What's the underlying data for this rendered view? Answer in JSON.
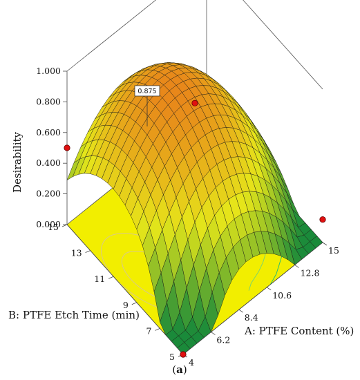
{
  "chart_data": {
    "type": "surface3d",
    "zlabel": "Desirability",
    "xlabel": "A: PTFE Content (%)",
    "ylabel": "B: PTFE Etch Time (min)",
    "x_ticks": [
      "4",
      "6.2",
      "8.4",
      "10.6",
      "12.8",
      "15"
    ],
    "y_ticks": [
      "5",
      "7",
      "9",
      "11",
      "13",
      "15"
    ],
    "z_ticks": [
      "0.000",
      "0.200",
      "0.400",
      "0.600",
      "0.800",
      "1.000"
    ],
    "xlim": [
      4,
      15
    ],
    "ylim": [
      5,
      15
    ],
    "zlim": [
      0,
      1
    ],
    "annotation": "0.875",
    "caption_prefix": "(",
    "caption_letter": "a",
    "caption_suffix": ")",
    "design_points": [
      {
        "x": 4,
        "y": 15,
        "z": 0.5
      },
      {
        "x": 15,
        "y": 5,
        "z": 0.15
      },
      {
        "x": 4,
        "y": 5,
        "z": 0.0
      },
      {
        "x": 9.5,
        "y": 10,
        "z": 0.85
      }
    ],
    "surface_colors": {
      "low": "#1a8a3a",
      "mid": "#e6e61a",
      "high": "#e8741a"
    },
    "floor_color": "#f2ee00"
  }
}
